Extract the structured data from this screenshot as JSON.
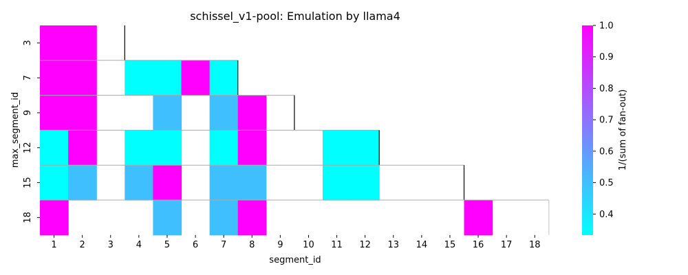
{
  "chart_data": {
    "type": "heatmap",
    "title": "schissel_v1-pool: Emulation by llama4",
    "xlabel": "segment_id",
    "ylabel": "max_segment_id",
    "x_categories": [
      1,
      2,
      3,
      4,
      5,
      6,
      7,
      8,
      9,
      10,
      11,
      12,
      13,
      14,
      15,
      16,
      17,
      18
    ],
    "y_categories": [
      3,
      7,
      9,
      12,
      15,
      18
    ],
    "cells": [
      {
        "x": 1,
        "y": 3,
        "value": 1.0
      },
      {
        "x": 2,
        "y": 3,
        "value": 1.0
      },
      {
        "x": 1,
        "y": 7,
        "value": 1.0
      },
      {
        "x": 2,
        "y": 7,
        "value": 1.0
      },
      {
        "x": 4,
        "y": 7,
        "value": 0.333
      },
      {
        "x": 5,
        "y": 7,
        "value": 0.333
      },
      {
        "x": 6,
        "y": 7,
        "value": 1.0
      },
      {
        "x": 7,
        "y": 7,
        "value": 0.333
      },
      {
        "x": 1,
        "y": 9,
        "value": 1.0
      },
      {
        "x": 2,
        "y": 9,
        "value": 1.0
      },
      {
        "x": 5,
        "y": 9,
        "value": 0.5
      },
      {
        "x": 7,
        "y": 9,
        "value": 0.5
      },
      {
        "x": 8,
        "y": 9,
        "value": 1.0
      },
      {
        "x": 1,
        "y": 12,
        "value": 0.333
      },
      {
        "x": 2,
        "y": 12,
        "value": 1.0
      },
      {
        "x": 4,
        "y": 12,
        "value": 0.333
      },
      {
        "x": 5,
        "y": 12,
        "value": 0.333
      },
      {
        "x": 7,
        "y": 12,
        "value": 0.333
      },
      {
        "x": 8,
        "y": 12,
        "value": 1.0
      },
      {
        "x": 11,
        "y": 12,
        "value": 0.333
      },
      {
        "x": 12,
        "y": 12,
        "value": 0.333
      },
      {
        "x": 1,
        "y": 15,
        "value": 0.333
      },
      {
        "x": 2,
        "y": 15,
        "value": 0.5
      },
      {
        "x": 4,
        "y": 15,
        "value": 0.5
      },
      {
        "x": 5,
        "y": 15,
        "value": 1.0
      },
      {
        "x": 7,
        "y": 15,
        "value": 0.5
      },
      {
        "x": 8,
        "y": 15,
        "value": 0.5
      },
      {
        "x": 11,
        "y": 15,
        "value": 0.333
      },
      {
        "x": 12,
        "y": 15,
        "value": 0.333
      },
      {
        "x": 1,
        "y": 18,
        "value": 1.0
      },
      {
        "x": 5,
        "y": 18,
        "value": 0.5
      },
      {
        "x": 7,
        "y": 18,
        "value": 0.5
      },
      {
        "x": 8,
        "y": 18,
        "value": 1.0
      },
      {
        "x": 16,
        "y": 18,
        "value": 1.0
      }
    ],
    "colorbar": {
      "label": "1/(sum of fan-out)",
      "colormap": "cool",
      "range": [
        0.333,
        1.0
      ],
      "ticks": [
        "0.4",
        "0.5",
        "0.6",
        "0.7",
        "0.8",
        "0.9",
        "1.0"
      ],
      "tick_values": [
        0.4,
        0.5,
        0.6,
        0.7,
        0.8,
        0.9,
        1.0
      ]
    },
    "grid": false
  }
}
